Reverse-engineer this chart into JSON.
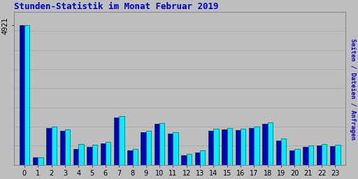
{
  "title": "Stunden-Statistik im Monat Februar 2019",
  "ylabel": "Seiten / Dateien / Anfragen",
  "hours": [
    0,
    1,
    2,
    3,
    4,
    5,
    6,
    7,
    8,
    9,
    10,
    11,
    12,
    13,
    14,
    15,
    16,
    17,
    18,
    19,
    20,
    21,
    22,
    23
  ],
  "ytick_val": 4921,
  "ytick_label": "4921",
  "series1_color": "#0000bb",
  "series2_color": "#00eeff",
  "series1_edge": "#003333",
  "series2_edge": "#006666",
  "background_color": "#bebebe",
  "plot_bg_color": "#bebebe",
  "title_color": "#0000cc",
  "ylabel_color_seiten": "#0000cc",
  "ylabel_color_anfragen": "#00aaaa",
  "grid_color": "#aaaaaa",
  "values_series1": [
    4921,
    250,
    1300,
    1200,
    560,
    620,
    760,
    1680,
    500,
    1150,
    1450,
    1100,
    340,
    440,
    1200,
    1250,
    1220,
    1300,
    1450,
    860,
    500,
    620,
    680,
    650
  ],
  "values_series2": [
    4921,
    270,
    1340,
    1240,
    740,
    700,
    800,
    1730,
    560,
    1210,
    1480,
    1150,
    380,
    510,
    1270,
    1310,
    1270,
    1360,
    1500,
    920,
    560,
    680,
    720,
    700
  ],
  "ylim_max": 5400,
  "bar_width": 0.38,
  "num_gridlines": 8
}
